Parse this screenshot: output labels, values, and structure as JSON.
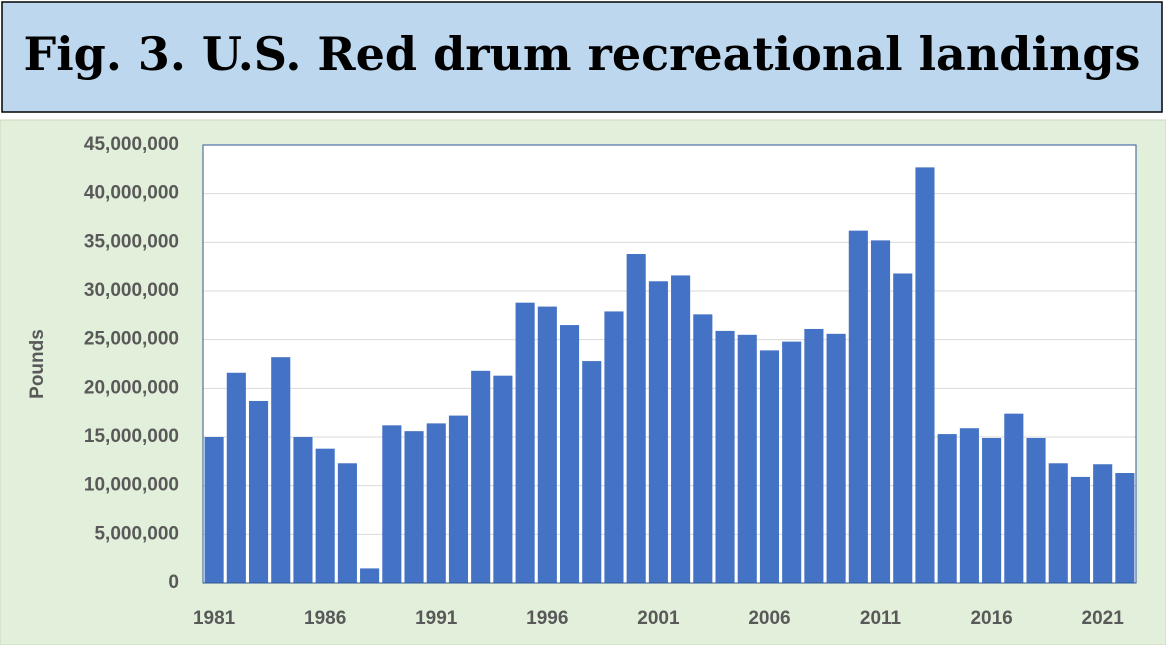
{
  "chart_data": {
    "type": "bar",
    "title": "Fig. 3. U.S. Red drum recreational landings",
    "y_label": "Pounds",
    "categories": [
      "1981",
      null,
      null,
      null,
      null,
      "1986",
      null,
      null,
      null,
      null,
      "1991",
      null,
      null,
      null,
      null,
      "1996",
      null,
      null,
      null,
      null,
      "2001",
      null,
      null,
      null,
      null,
      "2006",
      null,
      null,
      null,
      null,
      "2011",
      null,
      null,
      null,
      null,
      "2016",
      null,
      null,
      null,
      null,
      "2021",
      null
    ],
    "values": [
      15000000,
      21600000,
      18700000,
      23200000,
      15000000,
      13800000,
      12300000,
      1500000,
      16200000,
      15600000,
      16400000,
      17200000,
      21800000,
      21300000,
      28800000,
      28400000,
      26500000,
      22800000,
      27900000,
      33800000,
      31000000,
      31600000,
      27600000,
      25900000,
      25500000,
      23900000,
      24800000,
      26100000,
      25600000,
      36200000,
      35200000,
      31800000,
      42700000,
      15300000,
      15900000,
      14900000,
      17400000,
      14900000,
      12300000,
      10900000,
      12200000,
      11300000
    ],
    "color": "#4472c4",
    "ylim": [
      0,
      45000000
    ],
    "yticks": [
      0,
      {
        "value": 5000000,
        "label": "5,000,000"
      },
      {
        "value": 10000000,
        "label": "10,000,000"
      },
      {
        "value": 15000000,
        "label": "15,000,000"
      },
      {
        "value": 20000000,
        "label": "20,000,000"
      },
      {
        "value": 25000000,
        "label": "25,000,000"
      },
      {
        "value": 30000000,
        "label": "30,000,000"
      },
      {
        "value": 35000000,
        "label": "35,000,000"
      },
      {
        "value": 40000000,
        "label": "40,000,000"
      },
      {
        "value": 45000000,
        "label": "45,000,000"
      }
    ],
    "grid": true
  }
}
